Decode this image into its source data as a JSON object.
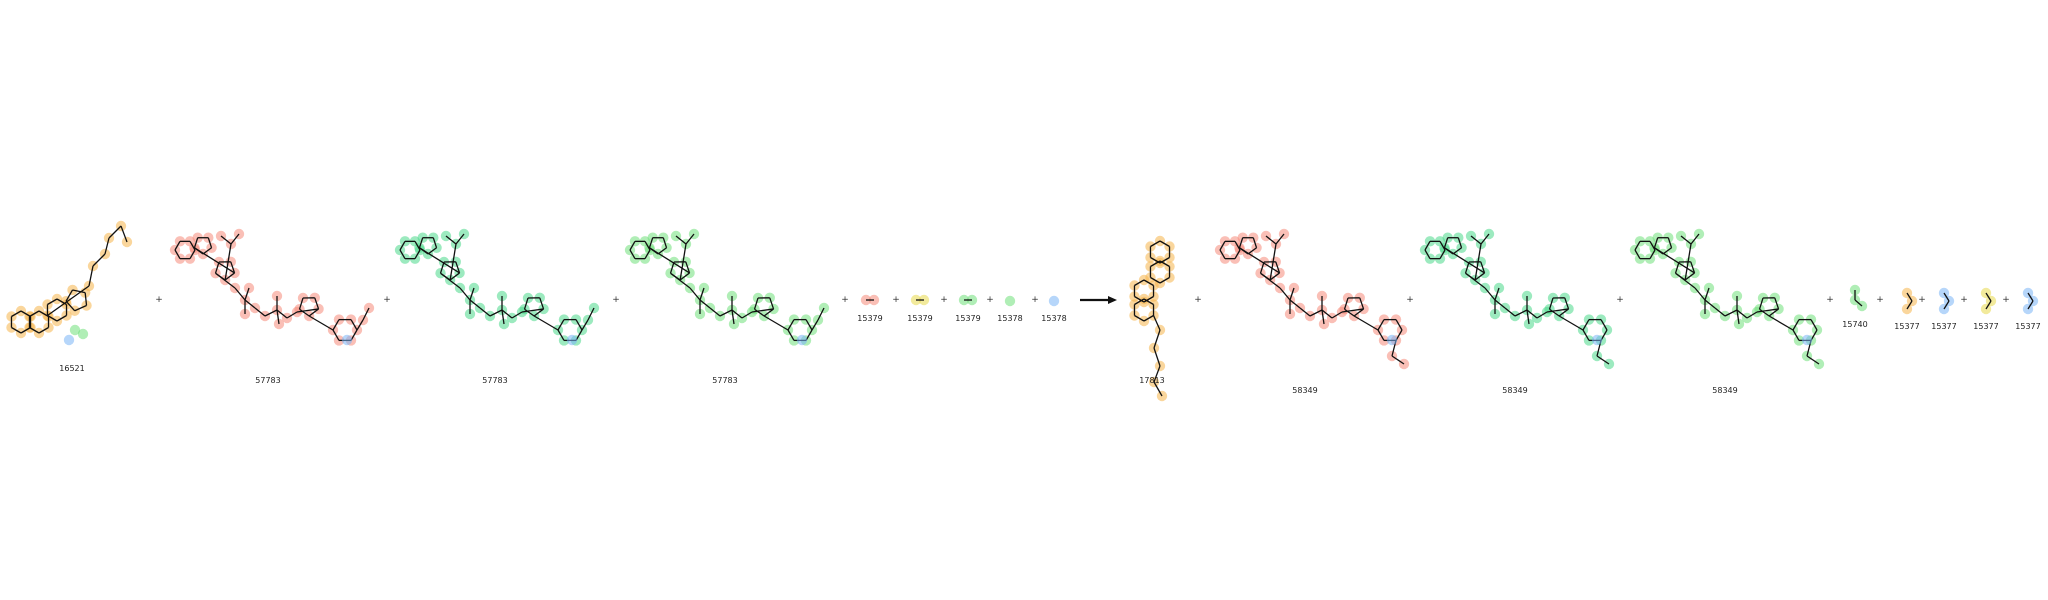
{
  "reaction": {
    "reactants": [
      {
        "id": "16521",
        "color": "#f5b54a"
      },
      {
        "id": "57783",
        "color": "#f58a7a"
      },
      {
        "id": "57783",
        "color": "#4ad98a"
      },
      {
        "id": "57783",
        "color": "#6fe07a"
      },
      {
        "id": "15379",
        "color": "#f58a7a"
      },
      {
        "id": "15379",
        "color": "#e8d84a"
      },
      {
        "id": "15379",
        "color": "#6fe07a"
      },
      {
        "id": "15378",
        "color": "#6fe07a"
      },
      {
        "id": "15378",
        "color": "#7ab4f5"
      }
    ],
    "products": [
      {
        "id": "17813",
        "color": "#f5b54a"
      },
      {
        "id": "58349",
        "color": "#f58a7a"
      },
      {
        "id": "58349",
        "color": "#4ad98a"
      },
      {
        "id": "58349",
        "color": "#6fe07a"
      },
      {
        "id": "15740",
        "color": "#6fe07a"
      },
      {
        "id": "15377",
        "color": "#f5b54a"
      },
      {
        "id": "15377",
        "color": "#7ab4f5"
      },
      {
        "id": "15377",
        "color": "#e8d84a"
      },
      {
        "id": "15377",
        "color": "#7ab4f5"
      }
    ],
    "plus_sign": "+",
    "arrow": "reaction-arrow"
  }
}
